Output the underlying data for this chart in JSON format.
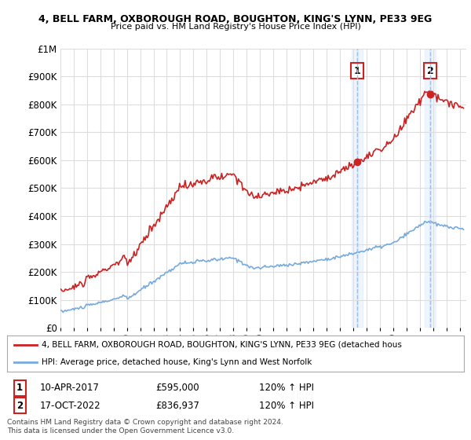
{
  "title1": "4, BELL FARM, OXBOROUGH ROAD, BOUGHTON, KING'S LYNN, PE33 9EG",
  "title2": "Price paid vs. HM Land Registry's House Price Index (HPI)",
  "sale1_date": "10-APR-2017",
  "sale1_price": 595000,
  "sale2_date": "17-OCT-2022",
  "sale2_price": 836937,
  "legend1": "4, BELL FARM, OXBOROUGH ROAD, BOUGHTON, KING'S LYNN, PE33 9EG (detached hous",
  "legend2": "HPI: Average price, detached house, King's Lynn and West Norfolk",
  "footnote": "Contains HM Land Registry data © Crown copyright and database right 2024.\nThis data is licensed under the Open Government Licence v3.0.",
  "red_color": "#cc2222",
  "blue_color": "#77aadd",
  "vline_color": "#aabbdd",
  "shade_color": "#ddeeff",
  "background_color": "#ffffff",
  "grid_color": "#dddddd",
  "ylim": [
    0,
    1000000
  ],
  "xlim_start": 1995.0,
  "xlim_end": 2025.5
}
